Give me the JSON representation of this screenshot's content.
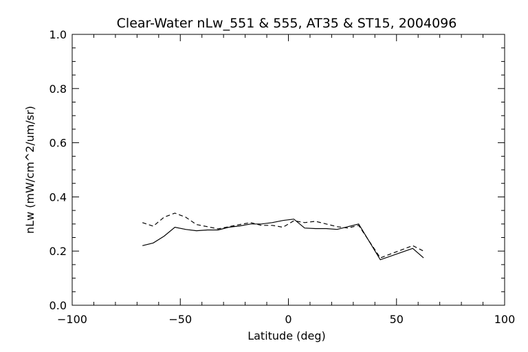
{
  "chart_data": {
    "type": "line",
    "title": "Clear-Water nLw_551 & 555, AT35 & ST15, 2004096",
    "xlabel": "Latitude (deg)",
    "ylabel": "nLw (mW/cm^2/um/sr)",
    "xlim": [
      -100,
      100
    ],
    "ylim": [
      0.0,
      1.0
    ],
    "xticks": [
      -100,
      -50,
      0,
      50,
      100
    ],
    "xtick_labels": [
      "−100",
      "−50",
      "0",
      "50",
      "100"
    ],
    "yticks": [
      0.0,
      0.2,
      0.4,
      0.6,
      0.8,
      1.0
    ],
    "ytick_labels": [
      "0.0",
      "0.2",
      "0.4",
      "0.6",
      "0.8",
      "1.0"
    ],
    "grid": false,
    "series": [
      {
        "style": "solid",
        "x": [
          -67.5,
          -62.5,
          -57.5,
          -52.5,
          -47.5,
          -42.5,
          -37.5,
          -32.5,
          -27.5,
          -22.5,
          -17.5,
          -12.5,
          -7.5,
          -2.5,
          2.5,
          7.5,
          12.5,
          17.5,
          22.5,
          27.5,
          32.5,
          42.5,
          57.5,
          62.5
        ],
        "y": [
          0.22,
          0.23,
          0.255,
          0.288,
          0.28,
          0.275,
          0.278,
          0.278,
          0.288,
          0.293,
          0.3,
          0.3,
          0.305,
          0.313,
          0.318,
          0.285,
          0.283,
          0.283,
          0.28,
          0.29,
          0.3,
          0.168,
          0.21,
          0.175
        ]
      },
      {
        "style": "dashed",
        "x": [
          -67.5,
          -62.5,
          -57.5,
          -52.5,
          -47.5,
          -42.5,
          -37.5,
          -32.5,
          -27.5,
          -22.5,
          -17.5,
          -12.5,
          -7.5,
          -2.5,
          2.5,
          7.5,
          12.5,
          17.5,
          22.5,
          27.5,
          32.5,
          42.5,
          57.5,
          62.5
        ],
        "y": [
          0.305,
          0.292,
          0.325,
          0.34,
          0.325,
          0.298,
          0.29,
          0.282,
          0.29,
          0.298,
          0.305,
          0.295,
          0.295,
          0.288,
          0.312,
          0.305,
          0.31,
          0.3,
          0.29,
          0.285,
          0.295,
          0.175,
          0.22,
          0.2
        ]
      }
    ]
  }
}
